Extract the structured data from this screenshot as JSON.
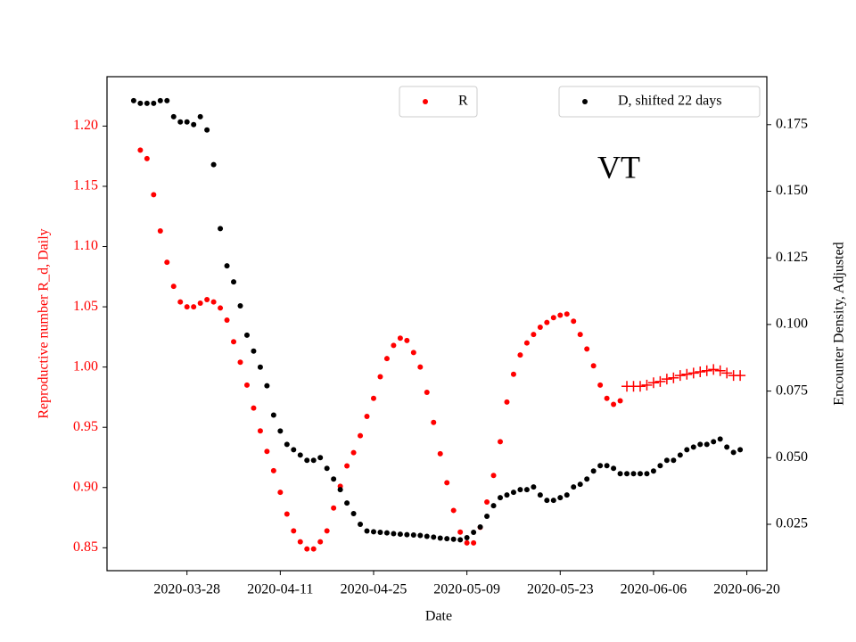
{
  "chart_data": {
    "type": "scatter",
    "annotation": "VT",
    "xlabel": "Date",
    "ylabel": "Reproductive number R_d, Daily",
    "y2label": "Encounter Density, Adjusted",
    "x": [
      "2020-03-20",
      "2020-03-21",
      "2020-03-22",
      "2020-03-23",
      "2020-03-24",
      "2020-03-25",
      "2020-03-26",
      "2020-03-27",
      "2020-03-28",
      "2020-03-29",
      "2020-03-30",
      "2020-03-31",
      "2020-04-01",
      "2020-04-02",
      "2020-04-03",
      "2020-04-04",
      "2020-04-05",
      "2020-04-06",
      "2020-04-07",
      "2020-04-08",
      "2020-04-09",
      "2020-04-10",
      "2020-04-11",
      "2020-04-12",
      "2020-04-13",
      "2020-04-14",
      "2020-04-15",
      "2020-04-16",
      "2020-04-17",
      "2020-04-18",
      "2020-04-19",
      "2020-04-20",
      "2020-04-21",
      "2020-04-22",
      "2020-04-23",
      "2020-04-24",
      "2020-04-25",
      "2020-04-26",
      "2020-04-27",
      "2020-04-28",
      "2020-04-29",
      "2020-04-30",
      "2020-05-01",
      "2020-05-02",
      "2020-05-03",
      "2020-05-04",
      "2020-05-05",
      "2020-05-06",
      "2020-05-07",
      "2020-05-08",
      "2020-05-09",
      "2020-05-10",
      "2020-05-11",
      "2020-05-12",
      "2020-05-13",
      "2020-05-14",
      "2020-05-15",
      "2020-05-16",
      "2020-05-17",
      "2020-05-18",
      "2020-05-19",
      "2020-05-20",
      "2020-05-21",
      "2020-05-22",
      "2020-05-23",
      "2020-05-24",
      "2020-05-25",
      "2020-05-26",
      "2020-05-27",
      "2020-05-28",
      "2020-05-29",
      "2020-05-30",
      "2020-05-31",
      "2020-06-01",
      "2020-06-02",
      "2020-06-03",
      "2020-06-04",
      "2020-06-05",
      "2020-06-06",
      "2020-06-07",
      "2020-06-08",
      "2020-06-09",
      "2020-06-10",
      "2020-06-11",
      "2020-06-12",
      "2020-06-13",
      "2020-06-14",
      "2020-06-15",
      "2020-06-16",
      "2020-06-17",
      "2020-06-18",
      "2020-06-19"
    ],
    "xlim": [
      "2020-03-16",
      "2020-06-23"
    ],
    "xticks": [
      "2020-03-28",
      "2020-04-11",
      "2020-04-25",
      "2020-05-09",
      "2020-05-23",
      "2020-06-06",
      "2020-06-20"
    ],
    "ylim": [
      0.831,
      1.241
    ],
    "yticks": [
      0.85,
      {
        "value": 0.9,
        "label": "0.90"
      },
      0.95,
      {
        "value": 1.0,
        "label": "1.00"
      },
      1.05,
      {
        "value": 1.1,
        "label": "1.10"
      },
      1.15,
      {
        "value": 1.2,
        "label": "1.20"
      }
    ],
    "y2lim": [
      0.0076,
      0.193
    ],
    "y2ticks": [
      0.025,
      {
        "value": 0.05,
        "label": "0.050"
      },
      0.075,
      {
        "value": 0.1,
        "label": "0.100"
      },
      0.125,
      {
        "value": 0.15,
        "label": "0.150"
      },
      0.175
    ],
    "ylabel_color": "#ff0000",
    "series": [
      {
        "name": "R",
        "color": "#ff0000",
        "marker": "dot",
        "values": [
          null,
          1.18,
          1.173,
          1.143,
          1.113,
          1.087,
          1.067,
          1.054,
          1.05,
          1.05,
          1.053,
          1.056,
          1.054,
          1.049,
          1.039,
          1.021,
          1.004,
          0.985,
          0.966,
          0.947,
          0.93,
          0.914,
          0.896,
          0.878,
          0.864,
          0.855,
          0.849,
          0.849,
          0.855,
          0.864,
          0.883,
          0.901,
          0.918,
          0.929,
          0.943,
          0.959,
          0.974,
          0.992,
          1.007,
          1.018,
          1.024,
          1.022,
          1.012,
          1.0,
          0.979,
          0.954,
          0.928,
          0.904,
          0.881,
          0.863,
          0.854,
          0.854,
          0.867,
          0.888,
          0.91,
          0.938,
          0.971,
          0.994,
          1.01,
          1.02,
          1.027,
          1.033,
          1.037,
          1.041,
          1.043,
          1.044,
          1.038,
          1.027,
          1.015,
          1.001,
          0.985,
          0.974,
          0.969,
          0.972,
          null,
          null,
          null,
          null,
          null,
          null,
          null,
          null,
          null,
          null,
          null,
          null,
          null,
          null,
          null,
          null,
          null,
          null
        ]
      },
      {
        "color": "#ff0000",
        "marker": "plus",
        "values": [
          null,
          null,
          null,
          null,
          null,
          null,
          null,
          null,
          null,
          null,
          null,
          null,
          null,
          null,
          null,
          null,
          null,
          null,
          null,
          null,
          null,
          null,
          null,
          null,
          null,
          null,
          null,
          null,
          null,
          null,
          null,
          null,
          null,
          null,
          null,
          null,
          null,
          null,
          null,
          null,
          null,
          null,
          null,
          null,
          null,
          null,
          null,
          null,
          null,
          null,
          null,
          null,
          null,
          null,
          null,
          null,
          null,
          null,
          null,
          null,
          null,
          null,
          null,
          null,
          null,
          null,
          null,
          null,
          null,
          null,
          null,
          null,
          null,
          null,
          0.984,
          0.984,
          0.984,
          0.985,
          0.987,
          0.988,
          0.99,
          0.991,
          0.993,
          0.994,
          0.995,
          0.996,
          0.997,
          0.998,
          0.997,
          0.995,
          0.993,
          0.993
        ]
      },
      {
        "name": "D, shifted 22 days",
        "color": "#000000",
        "marker": "dot",
        "axis": "y2",
        "values": [
          0.184,
          0.183,
          0.183,
          0.183,
          0.184,
          0.184,
          0.178,
          0.176,
          0.176,
          0.175,
          0.178,
          0.173,
          0.16,
          0.136,
          0.122,
          0.116,
          0.107,
          0.096,
          0.09,
          0.084,
          0.077,
          0.066,
          0.06,
          0.055,
          0.053,
          0.051,
          0.049,
          0.049,
          0.05,
          0.046,
          0.042,
          0.038,
          0.033,
          0.029,
          0.025,
          0.0225,
          0.0222,
          0.022,
          0.0218,
          0.0215,
          0.0213,
          0.0211,
          0.021,
          0.0208,
          0.0205,
          0.0202,
          0.0198,
          0.0196,
          0.0194,
          0.0192,
          0.02,
          0.022,
          0.024,
          0.028,
          0.032,
          0.035,
          0.036,
          0.037,
          0.038,
          0.038,
          0.039,
          0.036,
          0.034,
          0.034,
          0.035,
          0.036,
          0.039,
          0.04,
          0.042,
          0.045,
          0.047,
          0.047,
          0.046,
          0.044,
          0.044,
          0.044,
          0.044,
          0.044,
          0.045,
          0.047,
          0.049,
          0.049,
          0.051,
          0.053,
          0.054,
          0.055,
          0.055,
          0.056,
          0.057,
          0.054,
          0.052,
          0.053
        ]
      }
    ]
  }
}
